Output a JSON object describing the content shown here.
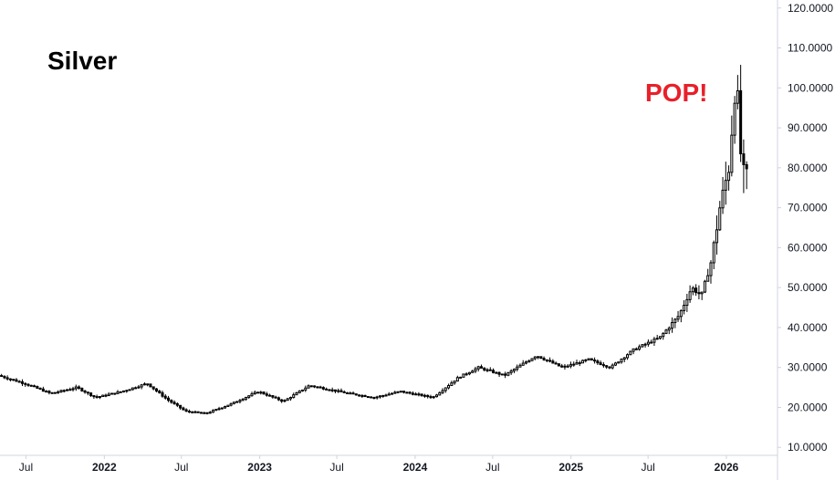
{
  "chart_data": {
    "type": "candlestick",
    "title": "Silver",
    "annotation": {
      "text": "POP!",
      "color": "#e8202a"
    },
    "y_axis": {
      "position": "right",
      "range": [
        8,
        122
      ],
      "ticks": [
        {
          "value": 10,
          "label": "10.0000"
        },
        {
          "value": 20,
          "label": "20.0000"
        },
        {
          "value": 30,
          "label": "30.0000"
        },
        {
          "value": 40,
          "label": "40.0000"
        },
        {
          "value": 50,
          "label": "50.0000"
        },
        {
          "value": 60,
          "label": "60.0000"
        },
        {
          "value": 70,
          "label": "70.0000"
        },
        {
          "value": 80,
          "label": "80.0000"
        },
        {
          "value": 90,
          "label": "90.0000"
        },
        {
          "value": 100,
          "label": "100.0000"
        },
        {
          "value": 110,
          "label": "110.0000"
        },
        {
          "value": 120,
          "label": "120.0000"
        }
      ]
    },
    "x_axis": {
      "range": [
        "2021-05-01",
        "2026-05-01"
      ],
      "ticks": [
        {
          "date": "2021-07-01",
          "label": "Jul",
          "major": false
        },
        {
          "date": "2022-01-01",
          "label": "2022",
          "major": true
        },
        {
          "date": "2022-07-01",
          "label": "Jul",
          "major": false
        },
        {
          "date": "2023-01-01",
          "label": "2023",
          "major": true
        },
        {
          "date": "2023-07-01",
          "label": "Jul",
          "major": false
        },
        {
          "date": "2024-01-01",
          "label": "2024",
          "major": true
        },
        {
          "date": "2024-07-01",
          "label": "Jul",
          "major": false
        },
        {
          "date": "2025-01-01",
          "label": "2025",
          "major": true
        },
        {
          "date": "2025-07-01",
          "label": "Jul",
          "major": false
        },
        {
          "date": "2026-01-01",
          "label": "2026",
          "major": true
        }
      ]
    },
    "grid": false,
    "colors": {
      "body": "#000000",
      "wick": "#000000",
      "axis_line": "#d1d4dc",
      "text": "#131722"
    },
    "price_path": [
      [
        "2021-05-01",
        28.0
      ],
      [
        "2021-07-01",
        26.0
      ],
      [
        "2021-09-01",
        23.5
      ],
      [
        "2021-11-01",
        25.0
      ],
      [
        "2021-12-15",
        22.5
      ],
      [
        "2022-02-15",
        24.0
      ],
      [
        "2022-04-15",
        26.0
      ],
      [
        "2022-06-01",
        22.0
      ],
      [
        "2022-07-15",
        19.0
      ],
      [
        "2022-09-01",
        18.5
      ],
      [
        "2022-11-01",
        21.0
      ],
      [
        "2023-01-01",
        24.0
      ],
      [
        "2023-03-01",
        21.5
      ],
      [
        "2023-05-01",
        25.5
      ],
      [
        "2023-08-01",
        23.5
      ],
      [
        "2023-10-01",
        22.5
      ],
      [
        "2023-12-01",
        24.0
      ],
      [
        "2024-02-15",
        22.5
      ],
      [
        "2024-04-15",
        27.5
      ],
      [
        "2024-06-01",
        30.0
      ],
      [
        "2024-08-01",
        28.0
      ],
      [
        "2024-10-15",
        33.0
      ],
      [
        "2024-12-15",
        30.0
      ],
      [
        "2025-02-15",
        32.0
      ],
      [
        "2025-04-07",
        30.0
      ],
      [
        "2025-06-01",
        34.5
      ],
      [
        "2025-08-01",
        37.5
      ],
      [
        "2025-09-15",
        43.0
      ],
      [
        "2025-10-15",
        50.0
      ],
      [
        "2025-11-07",
        48.0
      ],
      [
        "2025-12-01",
        57.0
      ],
      [
        "2025-12-20",
        70.0
      ],
      [
        "2026-01-10",
        80.0
      ],
      [
        "2026-01-28",
        104.0
      ],
      [
        "2026-02-05",
        85.0
      ],
      [
        "2026-02-15",
        78.0
      ]
    ],
    "candle_interval_days": 7
  }
}
